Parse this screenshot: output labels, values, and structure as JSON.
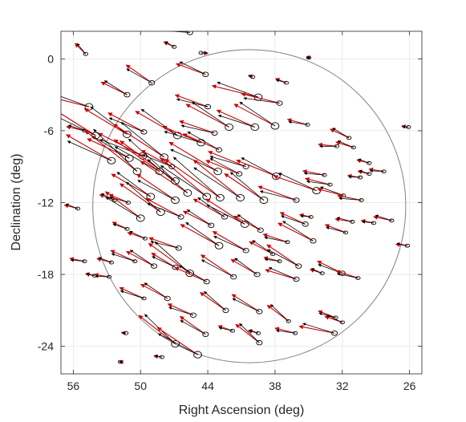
{
  "chart_data": {
    "type": "scatter",
    "title": "",
    "xlabel": "Right Ascension (deg)",
    "ylabel": "Declination (deg)",
    "xlim": [
      57.1,
      24.9
    ],
    "ylim": [
      -26.3,
      2.3
    ],
    "x_reversed": true,
    "grid": true,
    "xticks": [
      56,
      50,
      44,
      38,
      32,
      26
    ],
    "yticks": [
      0,
      -6,
      -12,
      -18,
      -24
    ],
    "colors": {
      "axis": "#262626",
      "grid": "#e6e6e6",
      "circle": "#808080",
      "black_arrows": "#000000",
      "red_arrows": "#cc0000"
    },
    "field_circle": {
      "center_ra": 40.3,
      "center_dec": -12.3,
      "radius_deg": 13.5
    },
    "sources": [
      [
        54.9,
        0.4,
        -45,
        -1.3
      ],
      [
        45.6,
        2.2,
        -10,
        -3.2
      ],
      [
        47.0,
        1.0,
        -25,
        -1.0
      ],
      [
        44.6,
        0.5,
        -5,
        0.6
      ],
      [
        35.0,
        0.1,
        0.2,
        -0.2
      ],
      [
        49.0,
        -2.0,
        -35,
        -2.7
      ],
      [
        44.2,
        -1.3,
        -20,
        -2.7
      ],
      [
        37.0,
        -2.0,
        -22,
        -1.0
      ],
      [
        51.2,
        -3.0,
        -26,
        -2.5
      ],
      [
        44.0,
        -4.0,
        -20,
        -3.0
      ],
      [
        39.5,
        -3.2,
        -14,
        -4.1
      ],
      [
        37.6,
        -3.7,
        -14,
        -3.4
      ],
      [
        54.6,
        -4.0,
        -14,
        -5.0
      ],
      [
        35.1,
        -5.5,
        -15,
        -1.8
      ],
      [
        31.4,
        -6.6,
        -25,
        -1.8
      ],
      [
        26.1,
        -5.7,
        -10,
        -0.6
      ],
      [
        55.0,
        -6.0,
        -13,
        -1.6
      ],
      [
        54.0,
        -6.4,
        -32,
        -4.4
      ],
      [
        51.2,
        -6.3,
        -31,
        -4.3
      ],
      [
        49.7,
        -6.1,
        -28,
        -3.5
      ],
      [
        46.7,
        -6.4,
        -30,
        -4.2
      ],
      [
        43.4,
        -6.2,
        -19,
        -3.2
      ],
      [
        42.1,
        -5.7,
        -28,
        -4.2
      ],
      [
        39.8,
        -5.7,
        -24,
        -3.6
      ],
      [
        38.0,
        -5.6,
        -28,
        -4.0
      ],
      [
        32.5,
        -7.3,
        -6,
        -1.6
      ],
      [
        31.0,
        -7.4,
        -17,
        -1.6
      ],
      [
        52.6,
        -8.5,
        -30,
        -4.5
      ],
      [
        51.0,
        -8.3,
        -25,
        -4.0
      ],
      [
        49.8,
        -8.1,
        -27,
        -4.3
      ],
      [
        47.9,
        -8.2,
        -33,
        -5.2
      ],
      [
        44.6,
        -7.0,
        -23,
        -3.6
      ],
      [
        43.0,
        -7.6,
        -24,
        -3.4
      ],
      [
        40.6,
        -9.0,
        -22,
        -3.5
      ],
      [
        37.9,
        -9.8,
        -22,
        -3.7
      ],
      [
        33.6,
        -9.7,
        -11,
        -1.9
      ],
      [
        50.3,
        -9.4,
        -38,
        -5.7
      ],
      [
        48.3,
        -9.4,
        -35,
        -4.8
      ],
      [
        46.9,
        -10.2,
        -36,
        -5.9
      ],
      [
        43.1,
        -9.4,
        -31,
        -4.9
      ],
      [
        41.2,
        -9.6,
        -22,
        -3.1
      ],
      [
        30.4,
        -9.9,
        -9,
        -1.1
      ],
      [
        29.6,
        -8.7,
        -14,
        -1.1
      ],
      [
        28.3,
        -9.4,
        -9,
        -1.3
      ],
      [
        52.3,
        -11.8,
        -20,
        -1.4
      ],
      [
        51.1,
        -12.0,
        -23,
        -1.8
      ],
      [
        49.1,
        -11.5,
        -30,
        -3.9
      ],
      [
        46.9,
        -11.8,
        -34,
        -4.0
      ],
      [
        45.8,
        -11.2,
        -34,
        -4.9
      ],
      [
        44.1,
        -11.5,
        -40,
        -5.2
      ],
      [
        42.9,
        -11.6,
        -35,
        -5.8
      ],
      [
        41.1,
        -11.6,
        -39,
        -5.2
      ],
      [
        39.0,
        -11.8,
        -34,
        -4.1
      ],
      [
        36.1,
        -11.8,
        -20,
        -3.5
      ],
      [
        34.3,
        -11.0,
        -19,
        -3.9
      ],
      [
        33.1,
        -10.5,
        -14,
        -2.2
      ],
      [
        31.9,
        -11.4,
        -14,
        -2.3
      ],
      [
        30.3,
        -11.8,
        -11,
        -2.1
      ],
      [
        55.6,
        -12.5,
        -15,
        -1.2
      ],
      [
        50.0,
        -13.3,
        -37,
        -3.8
      ],
      [
        48.2,
        -12.8,
        -35,
        -4.3
      ],
      [
        46.4,
        -13.2,
        -28,
        -3.4
      ],
      [
        43.7,
        -13.9,
        -27,
        -2.7
      ],
      [
        40.7,
        -13.8,
        -33,
        -4.0
      ],
      [
        39.3,
        -14.3,
        -28,
        -2.6
      ],
      [
        35.3,
        -13.8,
        -25,
        -2.4
      ],
      [
        31.1,
        -13.6,
        -9,
        -1.5
      ],
      [
        29.2,
        -13.7,
        -12,
        -1.1
      ],
      [
        27.6,
        -13.5,
        -12,
        -1.6
      ],
      [
        51.2,
        -14.2,
        -25,
        -1.4
      ],
      [
        49.6,
        -15.0,
        -19,
        -1.6
      ],
      [
        46.6,
        -15.8,
        -19,
        -2.7
      ],
      [
        43.0,
        -15.6,
        -29,
        -3.8
      ],
      [
        40.6,
        -16.0,
        -30,
        -3.3
      ],
      [
        38.2,
        -16.3,
        -28,
        -2.3
      ],
      [
        37.6,
        -16.9,
        -14,
        -1.4
      ],
      [
        34.6,
        -15.2,
        -27,
        -3.4
      ],
      [
        31.7,
        -14.5,
        -21,
        -1.9
      ],
      [
        26.2,
        -15.6,
        -7,
        -1.0
      ],
      [
        55.0,
        -16.9,
        -11,
        -1.3
      ],
      [
        52.6,
        -17.0,
        -15,
        -1.3
      ],
      [
        50.5,
        -16.9,
        -24,
        -2.3
      ],
      [
        48.8,
        -17.3,
        -28,
        -2.7
      ],
      [
        46.9,
        -17.4,
        -31,
        -2.4
      ],
      [
        45.6,
        -17.9,
        -36,
        -4.4
      ],
      [
        41.7,
        -18.2,
        -34,
        -3.4
      ],
      [
        39.6,
        -18.0,
        -30,
        -2.6
      ],
      [
        35.9,
        -17.3,
        -34,
        -3.3
      ],
      [
        33.8,
        -17.9,
        -18,
        -1.1
      ],
      [
        32.0,
        -17.9,
        -26,
        -2.4
      ],
      [
        36.1,
        -18.4,
        -17,
        -2.8
      ],
      [
        30.6,
        -18.3,
        -18,
        -2.0
      ],
      [
        54.1,
        -18.1,
        -11,
        -0.8
      ],
      [
        52.8,
        -18.2,
        -9,
        -1.3
      ],
      [
        44.1,
        -18.6,
        -24,
        -3.0
      ],
      [
        49.7,
        -20.0,
        -24,
        -2.3
      ],
      [
        47.6,
        -20.0,
        -28,
        -2.6
      ],
      [
        45.3,
        -21.4,
        -24,
        -2.4
      ],
      [
        42.4,
        -21.0,
        -35,
        -2.7
      ],
      [
        39.4,
        -21.1,
        -32,
        -2.8
      ],
      [
        36.8,
        -21.9,
        -37,
        -2.3
      ],
      [
        32.6,
        -21.6,
        -21,
        -1.6
      ],
      [
        32.0,
        -22.0,
        -19,
        -1.6
      ],
      [
        51.3,
        -22.9,
        -8,
        -0.4
      ],
      [
        46.9,
        -23.8,
        -38,
        -4.0
      ],
      [
        44.2,
        -23.0,
        -35,
        -2.7
      ],
      [
        39.4,
        -23.7,
        -38,
        -2.6
      ],
      [
        36.2,
        -22.9,
        -14,
        -1.8
      ],
      [
        32.7,
        -22.9,
        -11,
        -3.1
      ],
      [
        41.8,
        -22.7,
        -19,
        -1.3
      ],
      [
        39.5,
        -22.9,
        -14,
        -0.9
      ],
      [
        51.8,
        -25.3,
        -4,
        -0.1
      ],
      [
        48.1,
        -24.9,
        -7,
        -0.7
      ],
      [
        44.9,
        -24.7,
        -34,
        -4.2
      ],
      [
        40.0,
        -1.5,
        -15,
        -0.4
      ],
      [
        34.8,
        -13.2,
        -12,
        -1.0
      ],
      [
        29.6,
        -9.6,
        -13,
        -1.0
      ],
      [
        47.2,
        -9.0,
        -28,
        -3.0
      ],
      [
        42.5,
        -13.2,
        -30,
        -3.1
      ],
      [
        36.9,
        -15.3,
        -18,
        -2.2
      ]
    ]
  }
}
